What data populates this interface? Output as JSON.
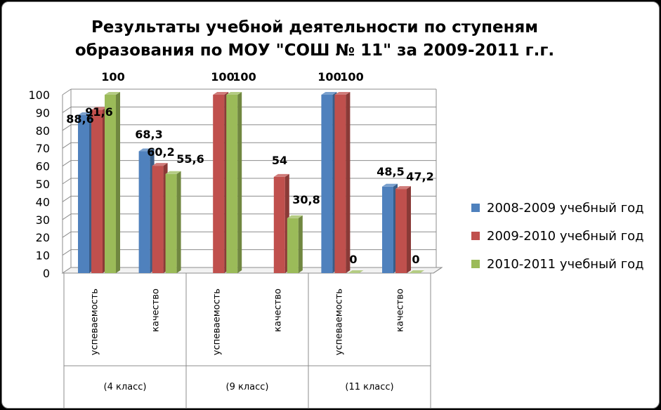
{
  "chart_data": {
    "type": "bar",
    "title_lines": [
      "Результаты учебной деятельности по ступеням",
      "образования по МОУ \"СОШ № 11\" за 2009-2011 г.г."
    ],
    "categories": [
      "успеваемость",
      "качество",
      "успеваемость",
      "качество",
      "успеваемость",
      "качество"
    ],
    "groups": [
      "(4 класс)",
      "(9 класс)",
      "(11 класс)"
    ],
    "ylim": [
      0,
      100
    ],
    "yticks": [
      0,
      10,
      20,
      30,
      40,
      50,
      60,
      70,
      80,
      90,
      100
    ],
    "series": [
      {
        "name": "2008-2009 учебный год",
        "color": "#4f81bd",
        "values": [
          88.6,
          68.3,
          null,
          null,
          100,
          48.5
        ],
        "labels": [
          "88,6",
          "68,3",
          "",
          "",
          "100",
          "48,5"
        ]
      },
      {
        "name": "2009-2010 учебный год",
        "color": "#c0504d",
        "values": [
          91.6,
          60.2,
          100,
          54,
          100,
          47.2
        ],
        "labels": [
          "91,6",
          "60,2",
          "100",
          "54",
          "100",
          "47,2"
        ]
      },
      {
        "name": "2010-2011 учебный год",
        "color": "#9bbb59",
        "values": [
          100,
          55.6,
          100,
          30.8,
          0,
          0
        ],
        "labels": [
          "100",
          "55,6",
          "100",
          "30,8",
          "0",
          "0"
        ]
      }
    ],
    "legend_position": "right",
    "grid": true
  }
}
